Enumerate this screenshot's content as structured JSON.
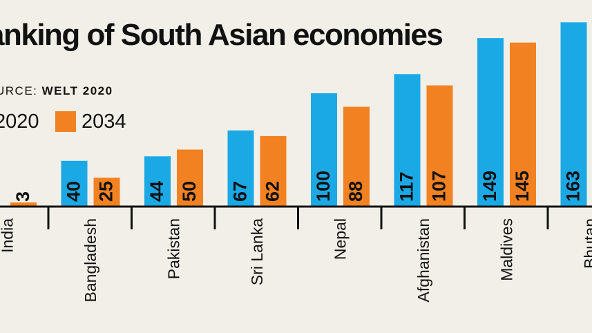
{
  "title": "anking of South Asian economies",
  "source": {
    "label": "URCE:",
    "value": "WELT 2020"
  },
  "colors": {
    "s2020": "#1ba9e6",
    "s2034": "#f28221",
    "axis": "#111111",
    "background": "#f1efe7"
  },
  "chart_data": {
    "type": "bar",
    "title": "anking of South Asian economies",
    "categories": [
      "India",
      "Bangladesh",
      "Pakistan",
      "Sri Lanka",
      "Nepal",
      "Afghanistan",
      "Maldives",
      "Bhutan"
    ],
    "series": [
      {
        "name": "2020",
        "values": [
          null,
          40,
          44,
          67,
          100,
          117,
          149,
          163
        ],
        "labels": [
          "",
          "40",
          "44",
          "67",
          "100",
          "117",
          "149",
          "163"
        ]
      },
      {
        "name": "2034",
        "values": [
          3,
          25,
          50,
          62,
          88,
          107,
          145,
          null
        ],
        "labels": [
          "3",
          "25",
          "50",
          "62",
          "88",
          "107",
          "145",
          ""
        ]
      }
    ],
    "xlabel": "",
    "ylabel": "",
    "ylim": [
      0,
      170
    ],
    "grid": false,
    "legend": "top-left"
  }
}
